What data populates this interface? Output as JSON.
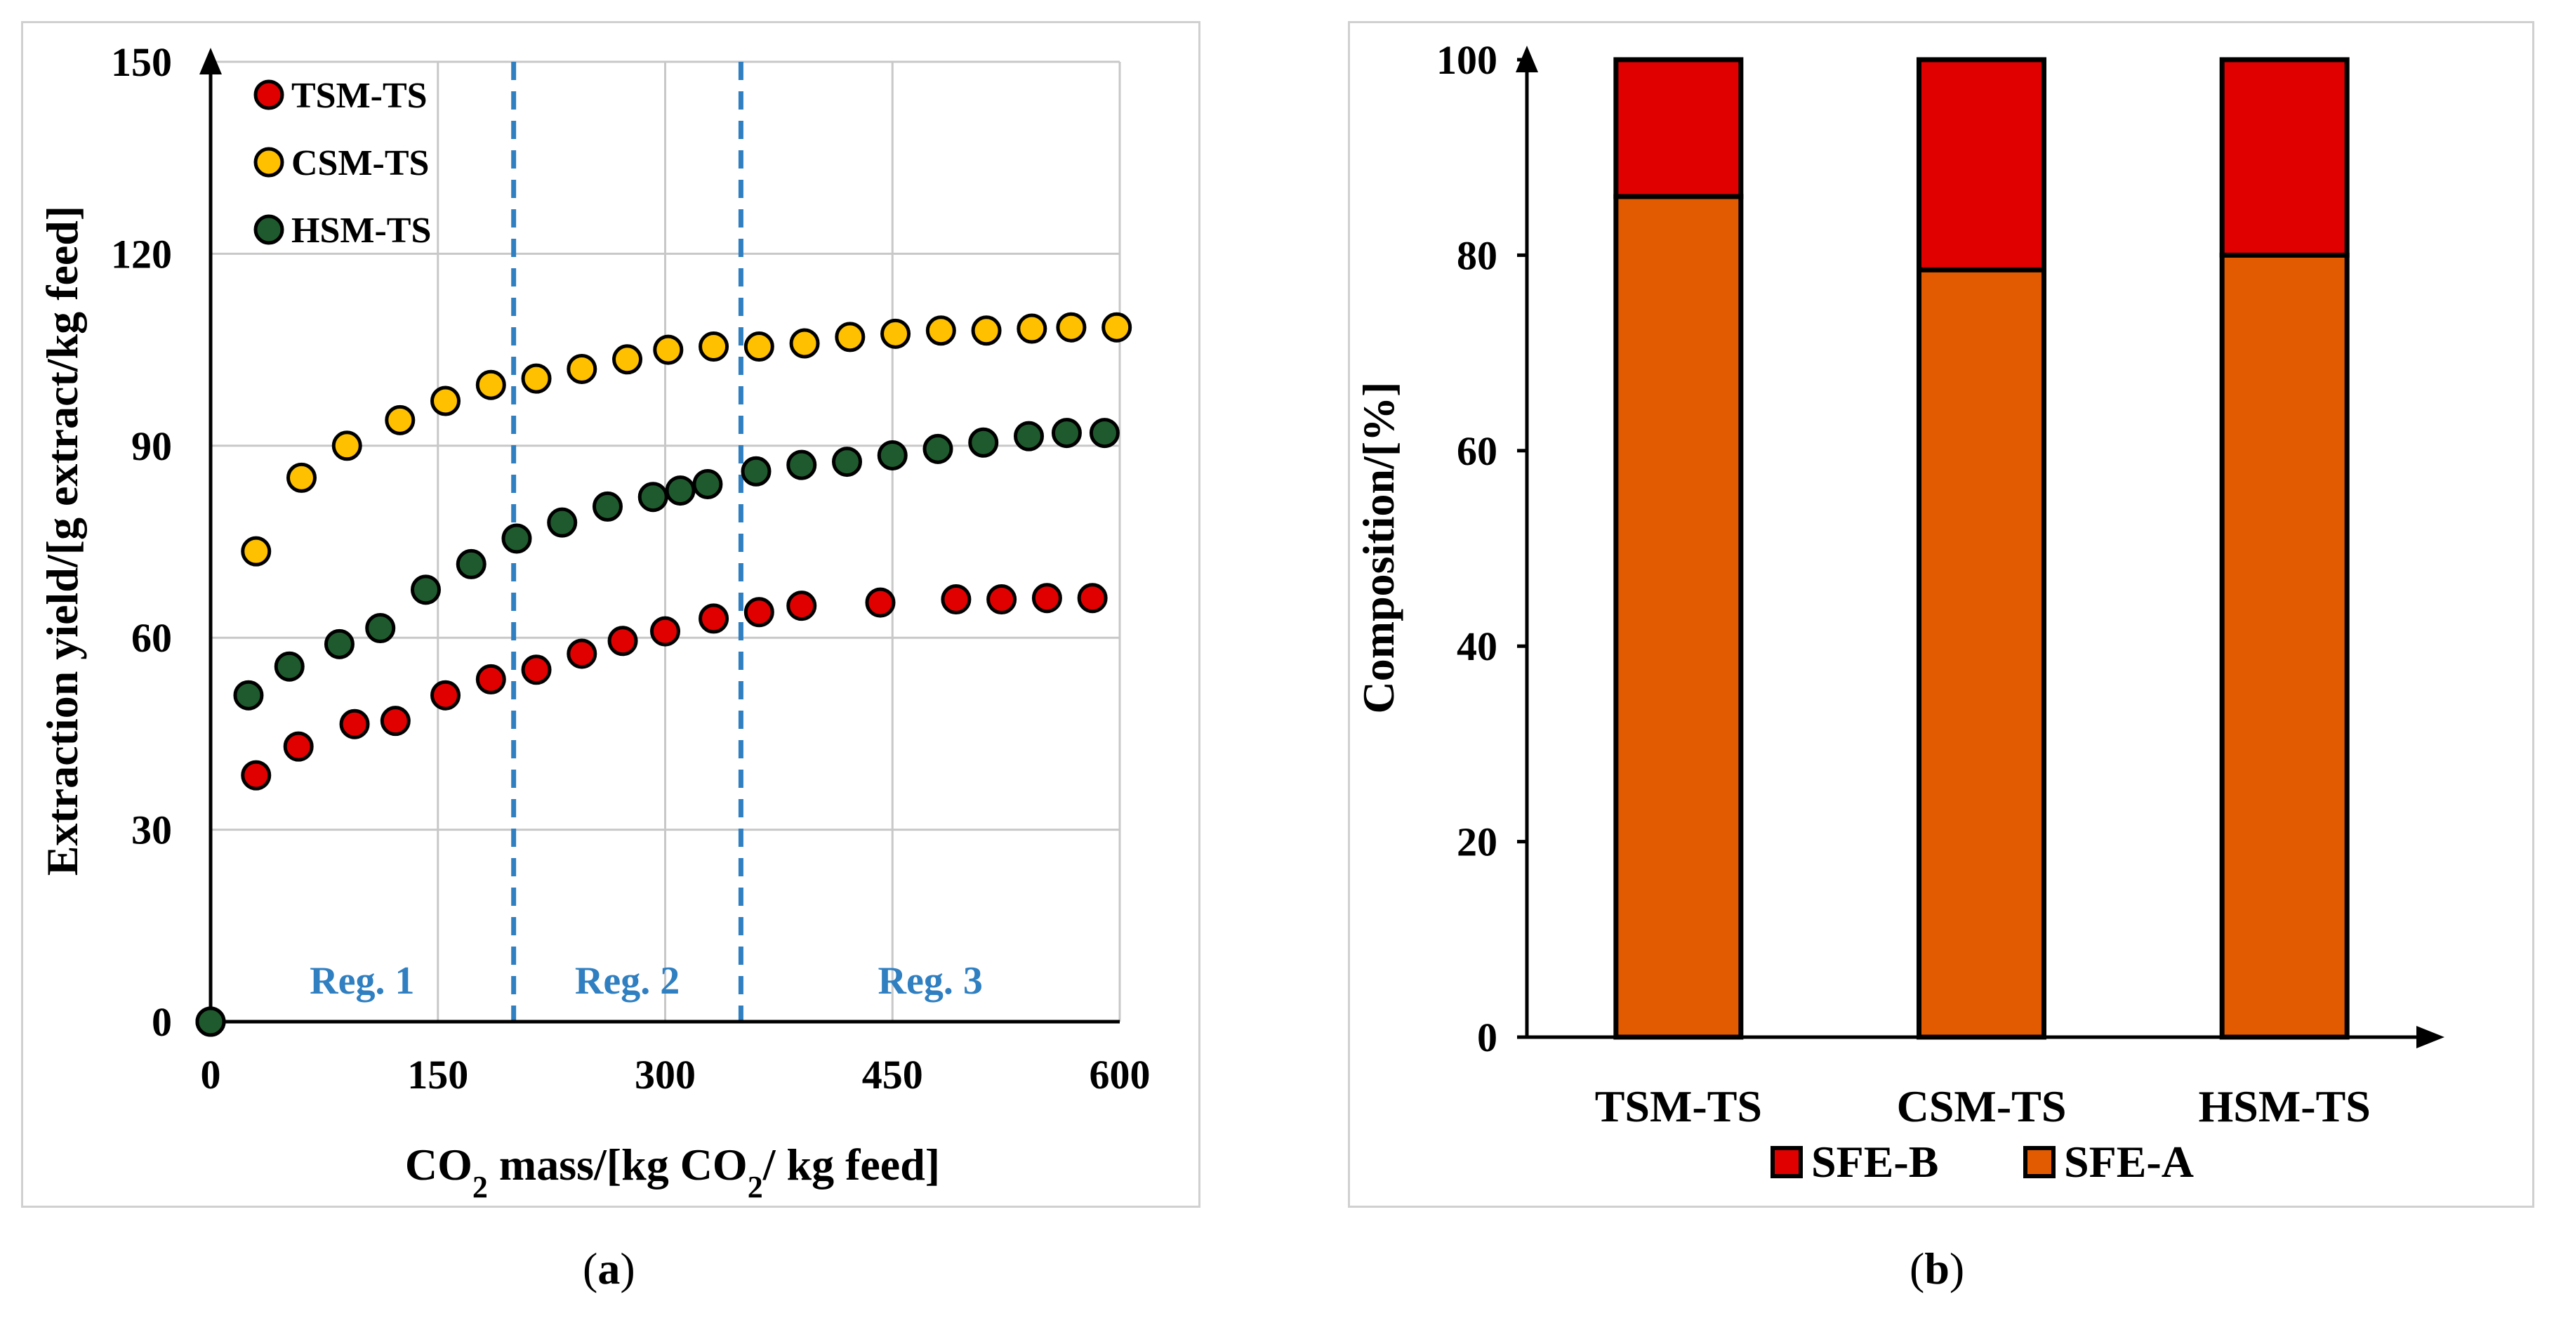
{
  "captions": {
    "a": "a",
    "b": "b"
  },
  "chart_data": [
    {
      "type": "scatter",
      "panel": "a",
      "xlabel": {
        "pre": "CO",
        "sub": "2",
        "mid": " mass/[kg CO",
        "sub2": "2",
        "post": "/ kg feed]"
      },
      "ylabel": "Extraction yield/[g extract/kg feed]",
      "xlim": [
        0,
        600
      ],
      "ylim": [
        0,
        150
      ],
      "xticks": [
        0,
        150,
        300,
        450,
        600
      ],
      "yticks": [
        0,
        30,
        60,
        90,
        120,
        150
      ],
      "grid": true,
      "legend_position": "top-left",
      "regions": [
        {
          "label": "Reg. 1",
          "x": 100
        },
        {
          "label": "Reg. 2",
          "x": 275
        },
        {
          "label": "Reg. 3",
          "x": 475
        }
      ],
      "vlines": [
        200,
        350
      ],
      "series": [
        {
          "name": "TSM-TS",
          "color": "#e00000",
          "x": [
            0,
            30,
            58,
            95,
            122,
            155,
            185,
            215,
            245,
            272,
            300,
            332,
            362,
            390,
            442,
            492,
            522,
            552,
            582
          ],
          "y": [
            0,
            38.5,
            43,
            46.5,
            47,
            51,
            53.5,
            55,
            57.5,
            59.5,
            61,
            63,
            64,
            65,
            65.5,
            66,
            66,
            66.2,
            66.2
          ]
        },
        {
          "name": "CSM-TS",
          "color": "#ffc000",
          "x": [
            0,
            30,
            60,
            90,
            125,
            155,
            185,
            215,
            245,
            275,
            302,
            332,
            362,
            392,
            422,
            452,
            482,
            512,
            542,
            568,
            598
          ],
          "y": [
            0,
            73.5,
            85,
            90,
            94,
            97,
            99.5,
            100.5,
            102,
            103.5,
            105,
            105.5,
            105.5,
            106,
            107,
            107.5,
            108,
            108,
            108.3,
            108.5,
            108.5
          ]
        },
        {
          "name": "HSM-TS",
          "color": "#1f5a2e",
          "x": [
            0,
            25,
            52,
            85,
            112,
            142,
            172,
            202,
            232,
            262,
            292,
            310,
            328,
            360,
            390,
            420,
            450,
            480,
            510,
            540,
            565,
            590
          ],
          "y": [
            0,
            51,
            55.5,
            59,
            61.5,
            67.5,
            71.5,
            75.5,
            78,
            80.5,
            82,
            83,
            84,
            86,
            87,
            87.5,
            88.5,
            89.5,
            90.5,
            91.5,
            92,
            92
          ]
        }
      ]
    },
    {
      "type": "bar",
      "stacked": true,
      "panel": "b",
      "ylabel": "Composition/[%]",
      "categories": [
        "TSM-TS",
        "CSM-TS",
        "HSM-TS"
      ],
      "ylim": [
        0,
        100
      ],
      "yticks": [
        0,
        20,
        40,
        60,
        80,
        100
      ],
      "grid": false,
      "legend_position": "bottom",
      "series": [
        {
          "name": "SFE-A",
          "color": "#e35b00",
          "values": [
            86,
            78.5,
            80
          ]
        },
        {
          "name": "SFE-B",
          "color": "#e00000",
          "values": [
            14,
            21.5,
            20
          ]
        }
      ],
      "legend_order": [
        "SFE-B",
        "SFE-A"
      ]
    }
  ]
}
